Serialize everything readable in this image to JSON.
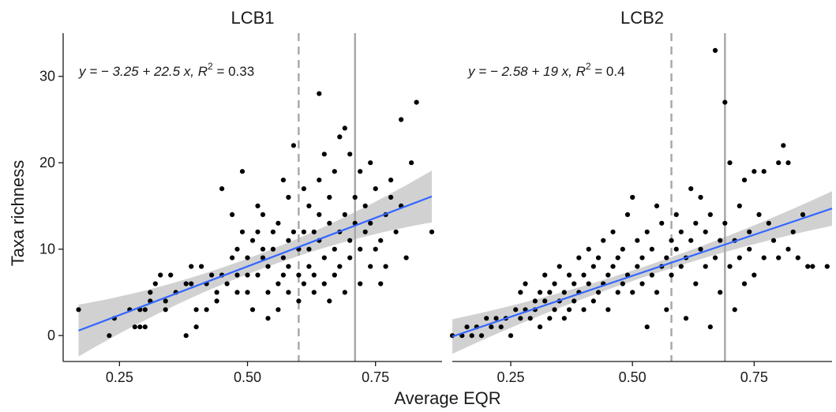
{
  "chart_data": {
    "type": "scatter",
    "ylabel": "Taxa richness",
    "xlabel": "Average EQR",
    "y_ticks": [
      0,
      10,
      20,
      30
    ],
    "y_tick_labels": [
      "0",
      "10",
      "20",
      "30"
    ],
    "ylim": [
      -3,
      35
    ],
    "colors": {
      "points": "#000000",
      "fit": "#3366ff",
      "band": "#bdbdbd",
      "reference_lines": "#a6a6a6"
    },
    "panels": [
      {
        "title": "LCB1",
        "xlim": [
          0.14,
          0.88
        ],
        "x_ticks": [
          0.25,
          0.5,
          0.75
        ],
        "x_tick_labels": [
          "0.25",
          "0.50",
          "0.75"
        ],
        "equation": {
          "prefix": "y = − 3.25 + 22.5 x,",
          "r2_label": "R",
          "r2_sup": "2",
          "r2_value": " = 0.33"
        },
        "fit": {
          "intercept": -3.25,
          "slope": 22.5,
          "x_range": [
            0.17,
            0.86
          ]
        },
        "dashed_line_x": 0.6,
        "solid_line_x": 0.71,
        "points": [
          [
            0.17,
            3
          ],
          [
            0.23,
            0
          ],
          [
            0.24,
            2
          ],
          [
            0.27,
            3
          ],
          [
            0.28,
            1
          ],
          [
            0.29,
            1
          ],
          [
            0.3,
            1
          ],
          [
            0.31,
            4
          ],
          [
            0.29,
            3
          ],
          [
            0.3,
            3
          ],
          [
            0.31,
            5
          ],
          [
            0.32,
            6
          ],
          [
            0.33,
            7
          ],
          [
            0.34,
            4
          ],
          [
            0.35,
            7
          ],
          [
            0.34,
            3
          ],
          [
            0.36,
            5
          ],
          [
            0.38,
            6
          ],
          [
            0.38,
            0
          ],
          [
            0.39,
            8
          ],
          [
            0.39,
            6
          ],
          [
            0.4,
            3
          ],
          [
            0.41,
            8
          ],
          [
            0.4,
            1
          ],
          [
            0.42,
            6
          ],
          [
            0.43,
            7
          ],
          [
            0.42,
            3
          ],
          [
            0.44,
            5
          ],
          [
            0.45,
            7
          ],
          [
            0.44,
            4
          ],
          [
            0.45,
            17
          ],
          [
            0.46,
            6
          ],
          [
            0.47,
            9
          ],
          [
            0.47,
            14
          ],
          [
            0.48,
            5
          ],
          [
            0.48,
            7
          ],
          [
            0.48,
            10
          ],
          [
            0.49,
            12
          ],
          [
            0.49,
            19
          ],
          [
            0.5,
            5
          ],
          [
            0.5,
            7
          ],
          [
            0.5,
            9
          ],
          [
            0.51,
            11
          ],
          [
            0.51,
            3
          ],
          [
            0.52,
            15
          ],
          [
            0.52,
            12
          ],
          [
            0.52,
            7
          ],
          [
            0.53,
            9
          ],
          [
            0.53,
            10
          ],
          [
            0.53,
            14
          ],
          [
            0.54,
            2
          ],
          [
            0.54,
            5
          ],
          [
            0.54,
            8
          ],
          [
            0.55,
            12
          ],
          [
            0.55,
            10
          ],
          [
            0.56,
            3
          ],
          [
            0.56,
            6
          ],
          [
            0.56,
            13
          ],
          [
            0.57,
            9
          ],
          [
            0.57,
            18
          ],
          [
            0.57,
            7
          ],
          [
            0.58,
            16
          ],
          [
            0.58,
            5
          ],
          [
            0.58,
            8
          ],
          [
            0.58,
            11
          ],
          [
            0.59,
            22
          ],
          [
            0.59,
            12
          ],
          [
            0.6,
            7
          ],
          [
            0.6,
            10
          ],
          [
            0.6,
            4
          ],
          [
            0.61,
            6
          ],
          [
            0.61,
            12
          ],
          [
            0.61,
            17
          ],
          [
            0.62,
            8
          ],
          [
            0.62,
            15
          ],
          [
            0.62,
            10
          ],
          [
            0.63,
            5
          ],
          [
            0.63,
            12
          ],
          [
            0.63,
            7
          ],
          [
            0.64,
            14
          ],
          [
            0.64,
            18
          ],
          [
            0.64,
            28
          ],
          [
            0.64,
            11
          ],
          [
            0.65,
            6
          ],
          [
            0.65,
            9
          ],
          [
            0.65,
            21
          ],
          [
            0.66,
            13
          ],
          [
            0.66,
            4
          ],
          [
            0.66,
            16
          ],
          [
            0.67,
            10
          ],
          [
            0.67,
            7
          ],
          [
            0.67,
            19
          ],
          [
            0.68,
            12
          ],
          [
            0.68,
            23
          ],
          [
            0.68,
            8
          ],
          [
            0.69,
            24
          ],
          [
            0.69,
            14
          ],
          [
            0.69,
            5
          ],
          [
            0.7,
            11
          ],
          [
            0.7,
            21
          ],
          [
            0.7,
            9
          ],
          [
            0.71,
            16
          ],
          [
            0.71,
            13
          ],
          [
            0.72,
            6
          ],
          [
            0.72,
            19
          ],
          [
            0.72,
            10
          ],
          [
            0.73,
            15
          ],
          [
            0.73,
            12
          ],
          [
            0.74,
            8
          ],
          [
            0.74,
            20
          ],
          [
            0.74,
            13
          ],
          [
            0.75,
            17
          ],
          [
            0.75,
            10
          ],
          [
            0.76,
            6
          ],
          [
            0.76,
            11
          ],
          [
            0.77,
            14
          ],
          [
            0.77,
            8
          ],
          [
            0.78,
            18
          ],
          [
            0.78,
            16
          ],
          [
            0.79,
            12
          ],
          [
            0.8,
            25
          ],
          [
            0.8,
            15
          ],
          [
            0.81,
            9
          ],
          [
            0.82,
            20
          ],
          [
            0.83,
            27
          ],
          [
            0.86,
            12
          ]
        ]
      },
      {
        "title": "LCB2",
        "xlim": [
          0.13,
          0.91
        ],
        "x_ticks": [
          0.25,
          0.5,
          0.75
        ],
        "x_tick_labels": [
          "0.25",
          "0.50",
          "0.75"
        ],
        "equation": {
          "prefix": "y = − 2.58 + 19 x,",
          "r2_label": "R",
          "r2_sup": "2",
          "r2_value": " = 0.4"
        },
        "fit": {
          "intercept": -2.58,
          "slope": 19,
          "x_range": [
            0.13,
            0.91
          ]
        },
        "dashed_line_x": 0.58,
        "solid_line_x": 0.69,
        "points": [
          [
            0.13,
            0
          ],
          [
            0.15,
            0
          ],
          [
            0.16,
            1
          ],
          [
            0.17,
            0
          ],
          [
            0.18,
            1
          ],
          [
            0.19,
            0
          ],
          [
            0.2,
            2
          ],
          [
            0.21,
            1
          ],
          [
            0.22,
            2
          ],
          [
            0.23,
            1
          ],
          [
            0.24,
            2
          ],
          [
            0.25,
            0
          ],
          [
            0.26,
            3
          ],
          [
            0.27,
            2
          ],
          [
            0.27,
            5
          ],
          [
            0.28,
            3
          ],
          [
            0.28,
            6
          ],
          [
            0.29,
            2
          ],
          [
            0.3,
            4
          ],
          [
            0.3,
            3
          ],
          [
            0.31,
            1
          ],
          [
            0.31,
            5
          ],
          [
            0.32,
            4
          ],
          [
            0.32,
            7
          ],
          [
            0.33,
            2
          ],
          [
            0.33,
            5
          ],
          [
            0.34,
            3
          ],
          [
            0.34,
            6
          ],
          [
            0.35,
            4
          ],
          [
            0.35,
            8
          ],
          [
            0.36,
            2
          ],
          [
            0.36,
            5
          ],
          [
            0.37,
            3
          ],
          [
            0.37,
            7
          ],
          [
            0.38,
            6
          ],
          [
            0.38,
            4
          ],
          [
            0.39,
            9
          ],
          [
            0.39,
            5
          ],
          [
            0.4,
            3
          ],
          [
            0.4,
            7
          ],
          [
            0.41,
            10
          ],
          [
            0.41,
            6
          ],
          [
            0.42,
            4
          ],
          [
            0.42,
            8
          ],
          [
            0.43,
            5
          ],
          [
            0.43,
            9
          ],
          [
            0.44,
            11
          ],
          [
            0.44,
            6
          ],
          [
            0.45,
            7
          ],
          [
            0.45,
            3
          ],
          [
            0.46,
            12
          ],
          [
            0.46,
            8
          ],
          [
            0.47,
            5
          ],
          [
            0.47,
            9
          ],
          [
            0.48,
            10
          ],
          [
            0.48,
            6
          ],
          [
            0.49,
            14
          ],
          [
            0.49,
            7
          ],
          [
            0.5,
            16
          ],
          [
            0.5,
            5
          ],
          [
            0.51,
            8
          ],
          [
            0.51,
            11
          ],
          [
            0.52,
            9
          ],
          [
            0.52,
            6
          ],
          [
            0.53,
            1
          ],
          [
            0.53,
            12
          ],
          [
            0.54,
            7
          ],
          [
            0.54,
            10
          ],
          [
            0.55,
            15
          ],
          [
            0.55,
            5
          ],
          [
            0.56,
            8
          ],
          [
            0.56,
            13
          ],
          [
            0.57,
            9
          ],
          [
            0.57,
            3
          ],
          [
            0.58,
            11
          ],
          [
            0.58,
            7
          ],
          [
            0.59,
            14
          ],
          [
            0.59,
            10
          ],
          [
            0.6,
            8
          ],
          [
            0.6,
            12
          ],
          [
            0.61,
            2
          ],
          [
            0.61,
            9
          ],
          [
            0.62,
            17
          ],
          [
            0.62,
            11
          ],
          [
            0.63,
            6
          ],
          [
            0.63,
            13
          ],
          [
            0.64,
            10
          ],
          [
            0.64,
            16
          ],
          [
            0.65,
            8
          ],
          [
            0.65,
            12
          ],
          [
            0.66,
            1
          ],
          [
            0.66,
            14
          ],
          [
            0.67,
            33
          ],
          [
            0.67,
            9
          ],
          [
            0.68,
            11
          ],
          [
            0.68,
            5
          ],
          [
            0.69,
            27
          ],
          [
            0.69,
            13
          ],
          [
            0.7,
            8
          ],
          [
            0.7,
            20
          ],
          [
            0.71,
            11
          ],
          [
            0.71,
            3
          ],
          [
            0.72,
            15
          ],
          [
            0.72,
            9
          ],
          [
            0.73,
            18
          ],
          [
            0.73,
            6
          ],
          [
            0.74,
            12
          ],
          [
            0.74,
            10
          ],
          [
            0.75,
            19
          ],
          [
            0.75,
            7
          ],
          [
            0.76,
            14
          ],
          [
            0.77,
            19
          ],
          [
            0.77,
            9
          ],
          [
            0.78,
            13
          ],
          [
            0.79,
            11
          ],
          [
            0.8,
            20
          ],
          [
            0.8,
            9
          ],
          [
            0.81,
            22
          ],
          [
            0.82,
            20
          ],
          [
            0.82,
            10
          ],
          [
            0.83,
            12
          ],
          [
            0.84,
            9
          ],
          [
            0.85,
            14
          ],
          [
            0.86,
            8
          ],
          [
            0.87,
            8
          ],
          [
            0.9,
            8
          ]
        ]
      }
    ]
  }
}
